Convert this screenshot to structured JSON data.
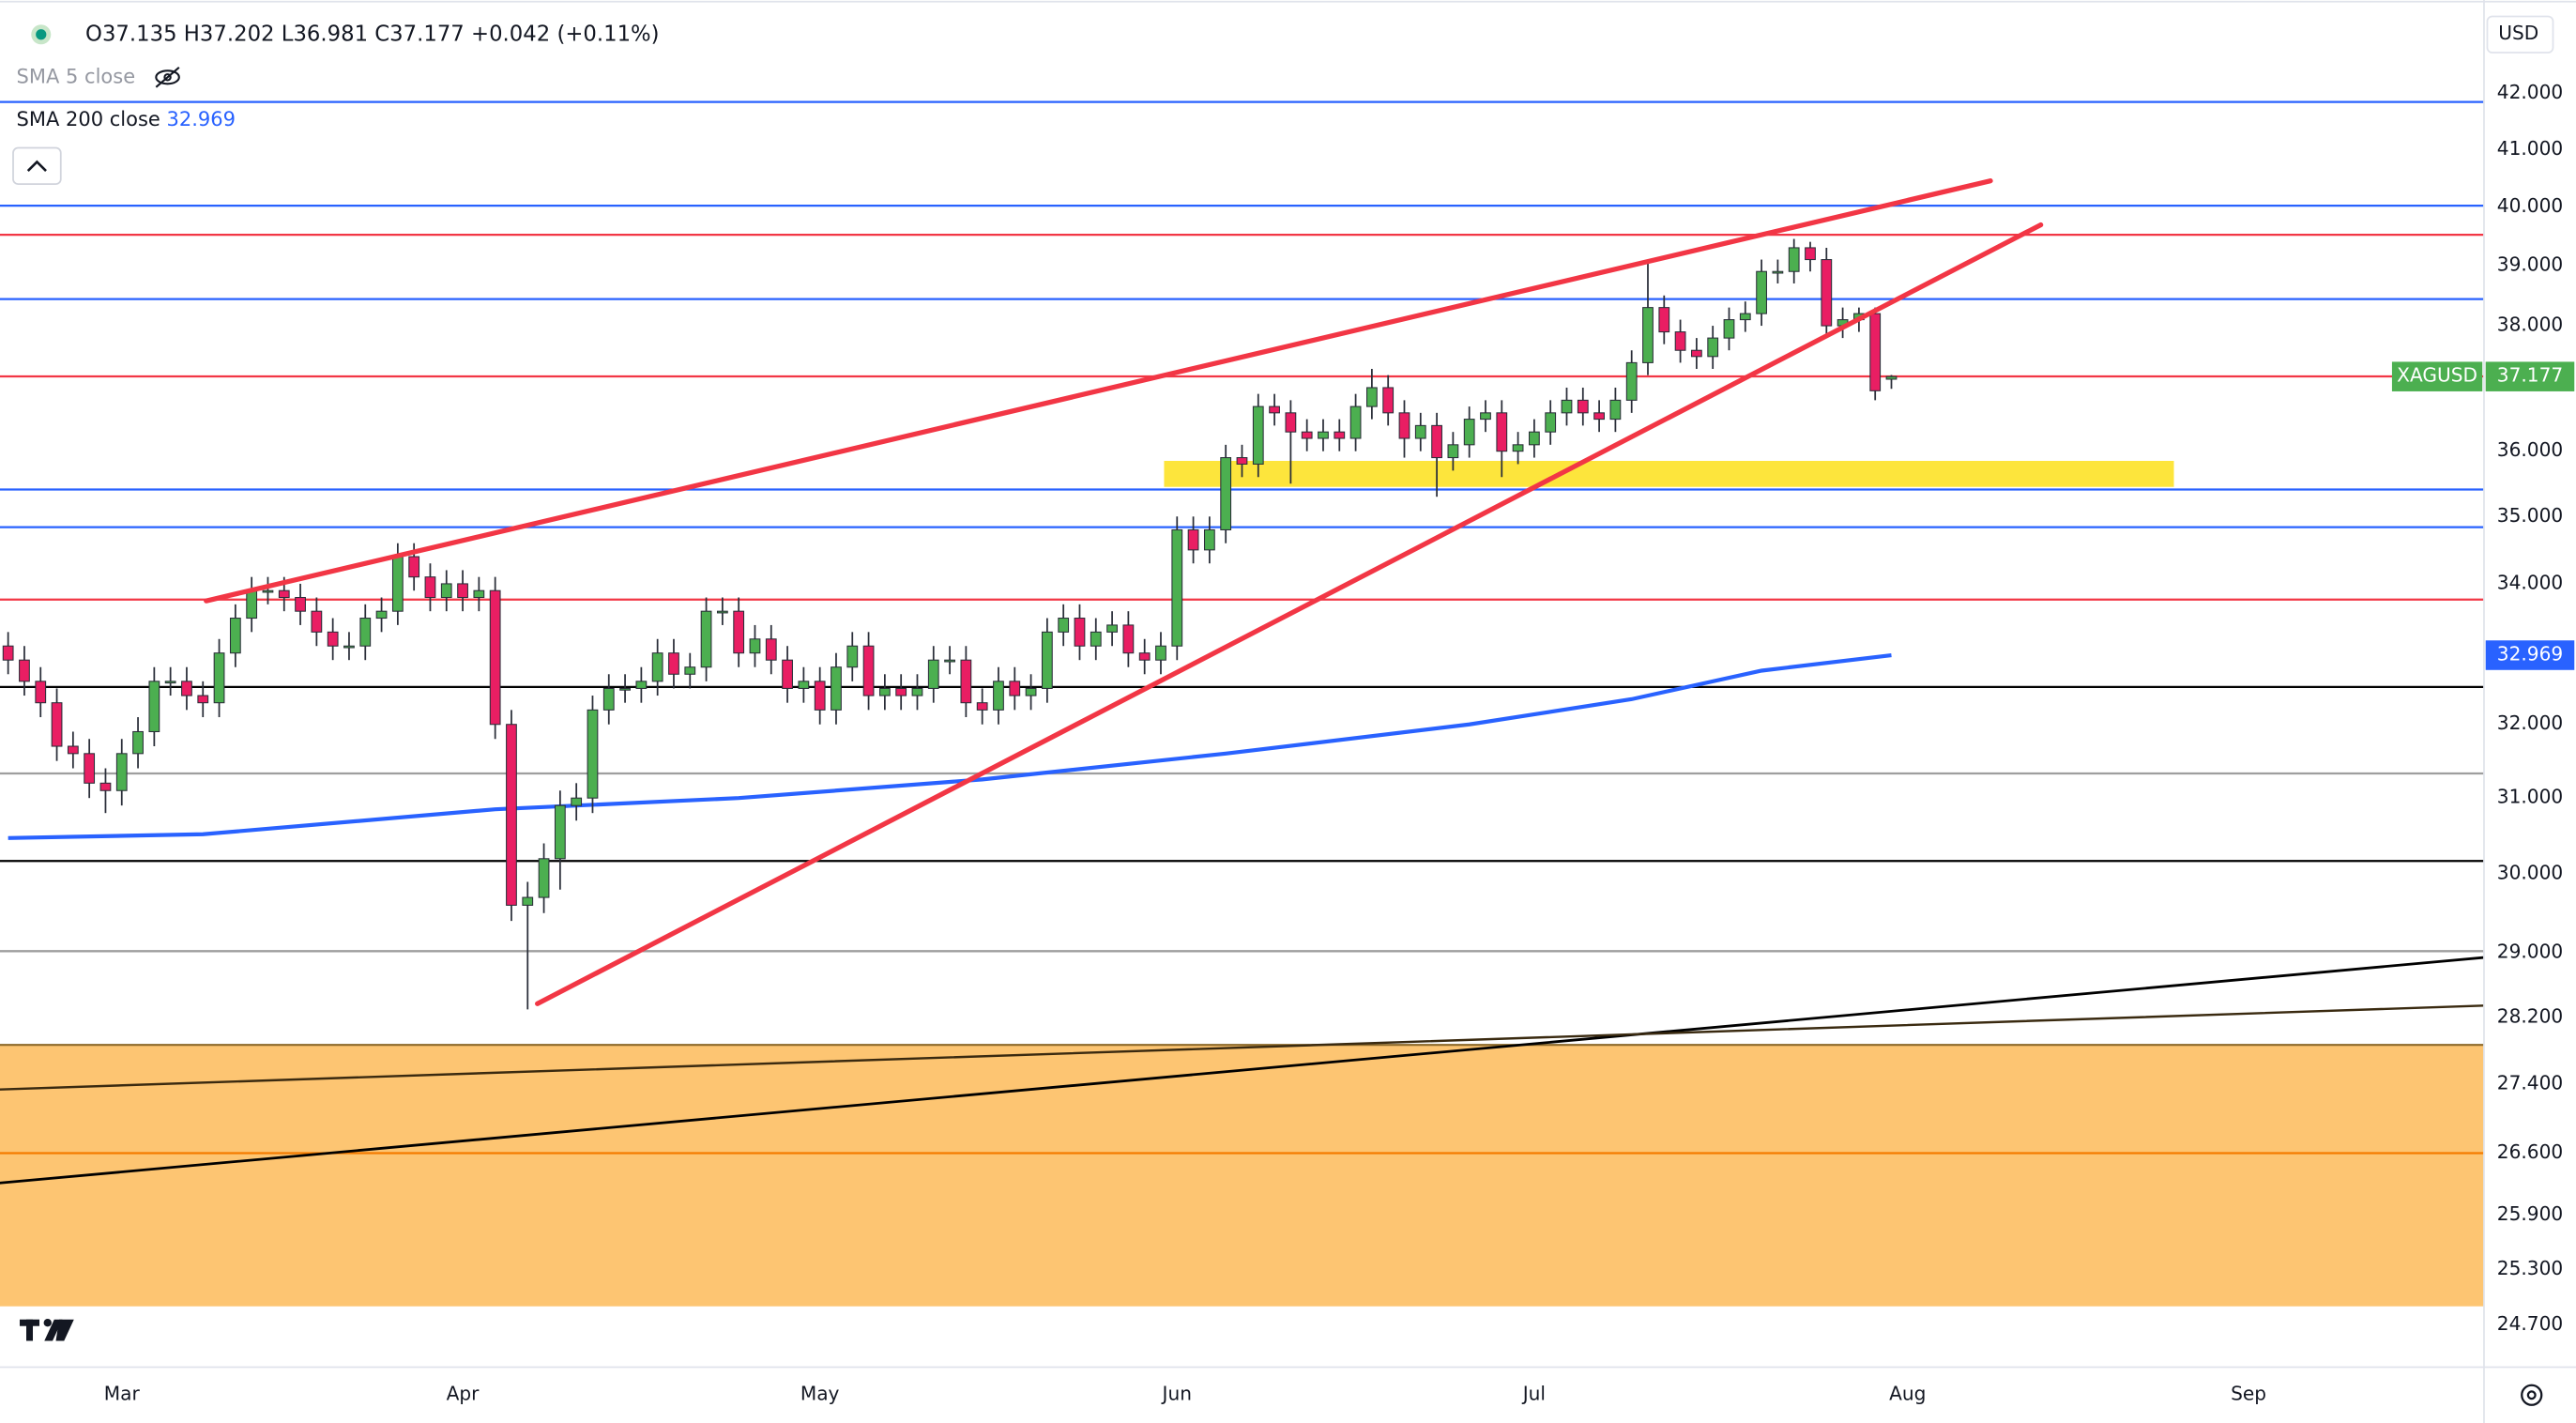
{
  "chart_data": {
    "type": "candlestick",
    "currency": "USD",
    "legend_keys": [
      "O",
      "H",
      "L",
      "C"
    ],
    "change": "+0.042 (+0.11%)",
    "indicators": [
      "SMA 5 close"
    ],
    "log_scale": true,
    "ylim": [
      24.29,
      43.73
    ],
    "yticks": [
      {
        "value": 42,
        "label": "42.000"
      },
      {
        "value": 41,
        "label": "41.000"
      },
      {
        "value": 40,
        "label": "40.000"
      },
      {
        "value": 39,
        "label": "39.000"
      },
      {
        "value": 38,
        "label": "38.000"
      },
      {
        "value": 36,
        "label": "36.000"
      },
      {
        "value": 35,
        "label": "35.000"
      },
      {
        "value": 34,
        "label": "34.000"
      },
      {
        "value": 32,
        "label": "32.000"
      },
      {
        "value": 31,
        "label": "31.000"
      },
      {
        "value": 30,
        "label": "30.000"
      },
      {
        "value": 29,
        "label": "29.000"
      },
      {
        "value": 28.2,
        "label": "28.200"
      },
      {
        "value": 27.4,
        "label": "27.400"
      },
      {
        "value": 26.6,
        "label": "26.600"
      },
      {
        "value": 25.9,
        "label": "25.900"
      },
      {
        "value": 25.3,
        "label": "25.300"
      },
      {
        "value": 24.7,
        "label": "24.700"
      }
    ],
    "categories": [
      null,
      null,
      null,
      null,
      null,
      null,
      null,
      "Mar",
      null,
      null,
      null,
      null,
      null,
      null,
      null,
      null,
      null,
      null,
      null,
      null,
      null,
      null,
      null,
      null,
      null,
      null,
      null,
      null,
      "Apr",
      null,
      null,
      null,
      null,
      null,
      null,
      null,
      null,
      null,
      null,
      null,
      null,
      null,
      null,
      null,
      null,
      null,
      null,
      null,
      null,
      null,
      "May",
      null,
      null,
      null,
      null,
      null,
      null,
      null,
      null,
      null,
      null,
      null,
      null,
      null,
      null,
      null,
      null,
      null,
      null,
      null,
      null,
      null,
      "Jun",
      null,
      null,
      null,
      null,
      null,
      null,
      null,
      null,
      null,
      null,
      null,
      null,
      null,
      null,
      null,
      null,
      null,
      null,
      null,
      null,
      null,
      "Jul",
      null,
      null,
      null,
      null,
      null,
      null,
      null,
      null,
      null,
      null,
      null,
      null,
      null,
      null,
      null,
      null,
      null,
      null,
      null,
      null,
      null,
      null,
      "Aug",
      null,
      null,
      null,
      null,
      null,
      null,
      null,
      null,
      null,
      null,
      null,
      null,
      null,
      null,
      null,
      null,
      null,
      null,
      null,
      null,
      "Sep",
      null,
      null,
      null,
      null,
      null,
      null,
      null,
      null,
      null,
      null,
      null,
      null,
      null,
      null
    ],
    "series": [
      {
        "name": "XAGUSD",
        "up_color": "#4caf50",
        "down_color": "#e91e63",
        "border_color": "#2a2e39",
        "open": [
          33.1,
          32.9,
          32.6,
          32.3,
          31.7,
          31.6,
          31.2,
          31.1,
          31.6,
          31.9,
          32.6,
          32.6,
          32.4,
          32.3,
          33.0,
          33.5,
          33.9,
          33.9,
          33.8,
          33.6,
          33.3,
          33.1,
          33.1,
          33.5,
          33.6,
          34.4,
          34.1,
          33.8,
          34.0,
          33.8,
          33.9,
          32.0,
          29.6,
          29.7,
          30.2,
          30.9,
          31.0,
          32.2,
          32.5,
          32.5,
          32.6,
          33.0,
          32.7,
          32.8,
          33.6,
          33.6,
          33.0,
          33.2,
          32.9,
          32.5,
          32.6,
          32.2,
          32.8,
          33.1,
          32.4,
          32.5,
          32.4,
          32.5,
          32.9,
          32.9,
          32.3,
          32.2,
          32.6,
          32.4,
          32.5,
          33.3,
          33.5,
          33.1,
          33.3,
          33.4,
          33.0,
          32.9,
          33.1,
          34.8,
          34.5,
          34.8,
          35.9,
          35.8,
          36.7,
          36.6,
          36.3,
          36.2,
          36.3,
          36.2,
          36.7,
          37.0,
          36.6,
          36.2,
          36.4,
          35.9,
          36.1,
          36.5,
          36.6,
          36.0,
          36.1,
          36.3,
          36.6,
          36.8,
          36.6,
          36.5,
          36.8,
          37.4,
          38.3,
          37.9,
          37.6,
          37.5,
          37.8,
          38.1,
          38.2,
          38.9,
          38.9,
          39.3,
          39.1,
          38.0,
          38.1,
          38.2,
          37.135,
          null,
          null,
          null,
          null,
          null,
          null,
          null,
          null,
          null,
          null,
          null,
          null,
          null,
          null,
          null,
          null,
          null,
          null,
          null,
          null,
          null,
          null,
          null,
          null,
          null,
          null,
          null,
          null,
          null,
          null,
          null,
          null,
          null,
          null,
          null,
          null
        ],
        "high": [
          33.3,
          33.1,
          32.8,
          32.5,
          31.9,
          31.8,
          31.4,
          31.8,
          32.1,
          32.8,
          32.8,
          32.8,
          32.6,
          33.2,
          33.7,
          34.1,
          34.1,
          34.1,
          34.0,
          33.8,
          33.5,
          33.3,
          33.7,
          33.8,
          34.6,
          34.6,
          34.3,
          34.2,
          34.2,
          34.1,
          34.1,
          32.2,
          29.9,
          30.4,
          31.1,
          31.2,
          32.4,
          32.7,
          32.7,
          32.8,
          33.2,
          33.2,
          33.0,
          33.8,
          33.8,
          33.8,
          33.4,
          33.4,
          33.1,
          32.8,
          32.8,
          33.0,
          33.3,
          33.3,
          32.7,
          32.7,
          32.7,
          33.1,
          33.1,
          33.1,
          32.5,
          32.8,
          32.8,
          32.7,
          33.5,
          33.7,
          33.7,
          33.5,
          33.6,
          33.6,
          33.2,
          33.3,
          35.0,
          35.0,
          35.0,
          36.1,
          36.1,
          36.9,
          36.9,
          36.8,
          36.5,
          36.5,
          36.5,
          36.9,
          37.3,
          37.2,
          36.8,
          36.6,
          36.6,
          36.3,
          36.7,
          36.8,
          36.8,
          36.3,
          36.5,
          36.8,
          37.0,
          37.0,
          36.8,
          37.0,
          37.6,
          39.1,
          38.5,
          38.1,
          37.8,
          38.0,
          38.3,
          38.4,
          39.1,
          39.1,
          39.45,
          39.4,
          39.3,
          38.3,
          38.3,
          38.3,
          37.202,
          null,
          null,
          null,
          null,
          null,
          null,
          null,
          null,
          null,
          null,
          null,
          null,
          null,
          null,
          null,
          null,
          null,
          null,
          null,
          null,
          null,
          null,
          null,
          null,
          null,
          null,
          null,
          null,
          null,
          null,
          null,
          null,
          null,
          null,
          null,
          null
        ],
        "low": [
          32.7,
          32.4,
          32.1,
          31.5,
          31.4,
          31.0,
          30.8,
          30.9,
          31.4,
          31.7,
          32.4,
          32.2,
          32.1,
          32.1,
          32.8,
          33.3,
          33.7,
          33.6,
          33.4,
          33.1,
          32.9,
          32.9,
          32.9,
          33.3,
          33.4,
          33.9,
          33.6,
          33.6,
          33.6,
          33.6,
          31.8,
          29.4,
          28.3,
          29.5,
          29.8,
          30.7,
          30.8,
          32.0,
          32.3,
          32.3,
          32.4,
          32.5,
          32.5,
          32.6,
          33.4,
          32.8,
          32.8,
          32.7,
          32.3,
          32.3,
          32.0,
          32.0,
          32.6,
          32.2,
          32.2,
          32.2,
          32.2,
          32.3,
          32.7,
          32.1,
          32.0,
          32.0,
          32.2,
          32.2,
          32.3,
          33.1,
          32.9,
          32.9,
          33.1,
          32.8,
          32.7,
          32.7,
          32.9,
          34.3,
          34.3,
          34.6,
          35.6,
          35.6,
          36.4,
          35.5,
          36.0,
          36.0,
          36.0,
          36.0,
          36.5,
          36.4,
          35.9,
          36.0,
          35.3,
          35.7,
          35.9,
          36.3,
          35.6,
          35.8,
          35.9,
          36.1,
          36.4,
          36.4,
          36.3,
          36.3,
          36.6,
          37.2,
          37.7,
          37.4,
          37.3,
          37.3,
          37.6,
          37.9,
          38.0,
          38.7,
          38.7,
          38.9,
          37.8,
          37.8,
          37.9,
          36.8,
          36.981,
          null,
          null,
          null,
          null,
          null,
          null,
          null,
          null,
          null,
          null,
          null,
          null,
          null,
          null,
          null,
          null,
          null,
          null,
          null,
          null,
          null,
          null,
          null,
          null,
          null,
          null,
          null,
          null,
          null,
          null,
          null,
          null,
          null,
          null,
          null,
          null
        ],
        "close": [
          32.9,
          32.6,
          32.3,
          31.7,
          31.6,
          31.2,
          31.1,
          31.6,
          31.9,
          32.6,
          32.6,
          32.4,
          32.3,
          33.0,
          33.5,
          33.9,
          33.9,
          33.8,
          33.6,
          33.3,
          33.1,
          33.1,
          33.5,
          33.6,
          34.4,
          34.1,
          33.8,
          34.0,
          33.8,
          33.9,
          32.0,
          29.6,
          29.7,
          30.2,
          30.9,
          31.0,
          32.2,
          32.5,
          32.5,
          32.6,
          33.0,
          32.7,
          32.8,
          33.6,
          33.6,
          33.0,
          33.2,
          32.9,
          32.5,
          32.6,
          32.2,
          32.8,
          33.1,
          32.4,
          32.5,
          32.4,
          32.5,
          32.9,
          32.9,
          32.3,
          32.2,
          32.6,
          32.4,
          32.5,
          33.3,
          33.5,
          33.1,
          33.3,
          33.4,
          33.0,
          32.9,
          33.1,
          34.8,
          34.5,
          34.8,
          35.9,
          35.8,
          36.7,
          36.6,
          36.3,
          36.2,
          36.3,
          36.2,
          36.7,
          37.0,
          36.6,
          36.2,
          36.4,
          35.9,
          36.1,
          36.5,
          36.6,
          36.0,
          36.1,
          36.3,
          36.6,
          36.8,
          36.6,
          36.5,
          36.8,
          37.4,
          38.3,
          37.9,
          37.6,
          37.5,
          37.8,
          38.1,
          38.2,
          38.9,
          38.9,
          39.3,
          39.1,
          38.0,
          38.1,
          38.2,
          36.95,
          37.177,
          null,
          null,
          null,
          null,
          null,
          null,
          null,
          null,
          null,
          null,
          null,
          null,
          null,
          null,
          null,
          null,
          null,
          null,
          null,
          null,
          null,
          null,
          null,
          null,
          null,
          null,
          null,
          null,
          null,
          null,
          null,
          null,
          null,
          null,
          null,
          null
        ]
      }
    ],
    "overlays": [
      {
        "name": "SMA 200 close",
        "color": "#2962ff",
        "x": [
          0,
          12,
          30,
          45,
          60,
          75,
          90,
          100,
          108,
          116
        ],
        "values": [
          30.47,
          30.52,
          30.85,
          31.0,
          31.25,
          31.6,
          32.0,
          32.35,
          32.75,
          32.969
        ]
      }
    ],
    "zones": [
      {
        "from": 24.9,
        "to": 27.87,
        "color": "#fdc572",
        "border_color": "#8d6a2a"
      },
      {
        "from": 35.45,
        "to": 35.85,
        "x": [
          71.2,
          133.4
        ],
        "color": "#fde53c"
      }
    ],
    "hlines": [
      {
        "value": 41.85,
        "color": "#2962ff"
      },
      {
        "value": 40.02,
        "color": "#2962ff"
      },
      {
        "value": 39.52,
        "color": "#f23645"
      },
      {
        "value": 38.44,
        "color": "#2962ff"
      },
      {
        "value": 37.18,
        "color": "#f23645"
      },
      {
        "value": 35.41,
        "color": "#2962ff"
      },
      {
        "value": 34.84,
        "color": "#2962ff"
      },
      {
        "value": 33.77,
        "color": "#f23645"
      },
      {
        "value": 32.52,
        "color": "#000000"
      },
      {
        "value": 31.33,
        "color": "#9e9e9e"
      },
      {
        "value": 30.17,
        "color": "#000000"
      },
      {
        "value": 29.02,
        "color": "#9e9e9e"
      },
      {
        "value": 26.6,
        "color": "#f57c00"
      }
    ],
    "trendlines": [
      {
        "x": [
          -0.5,
          153
        ],
        "values": [
          26.26,
          28.95
        ],
        "color": "#000000",
        "width": 1.6
      },
      {
        "x": [
          -0.5,
          153
        ],
        "values": [
          27.34,
          28.35
        ],
        "color": "#3a2a10",
        "width": 1.4
      },
      {
        "x": [
          12.2,
          122.1
        ],
        "values": [
          33.75,
          40.45
        ],
        "color": "#f23645",
        "width": 3
      },
      {
        "x": [
          32.6,
          125.2
        ],
        "values": [
          28.37,
          39.69
        ],
        "color": "#f23645",
        "width": 3
      }
    ]
  }
}
